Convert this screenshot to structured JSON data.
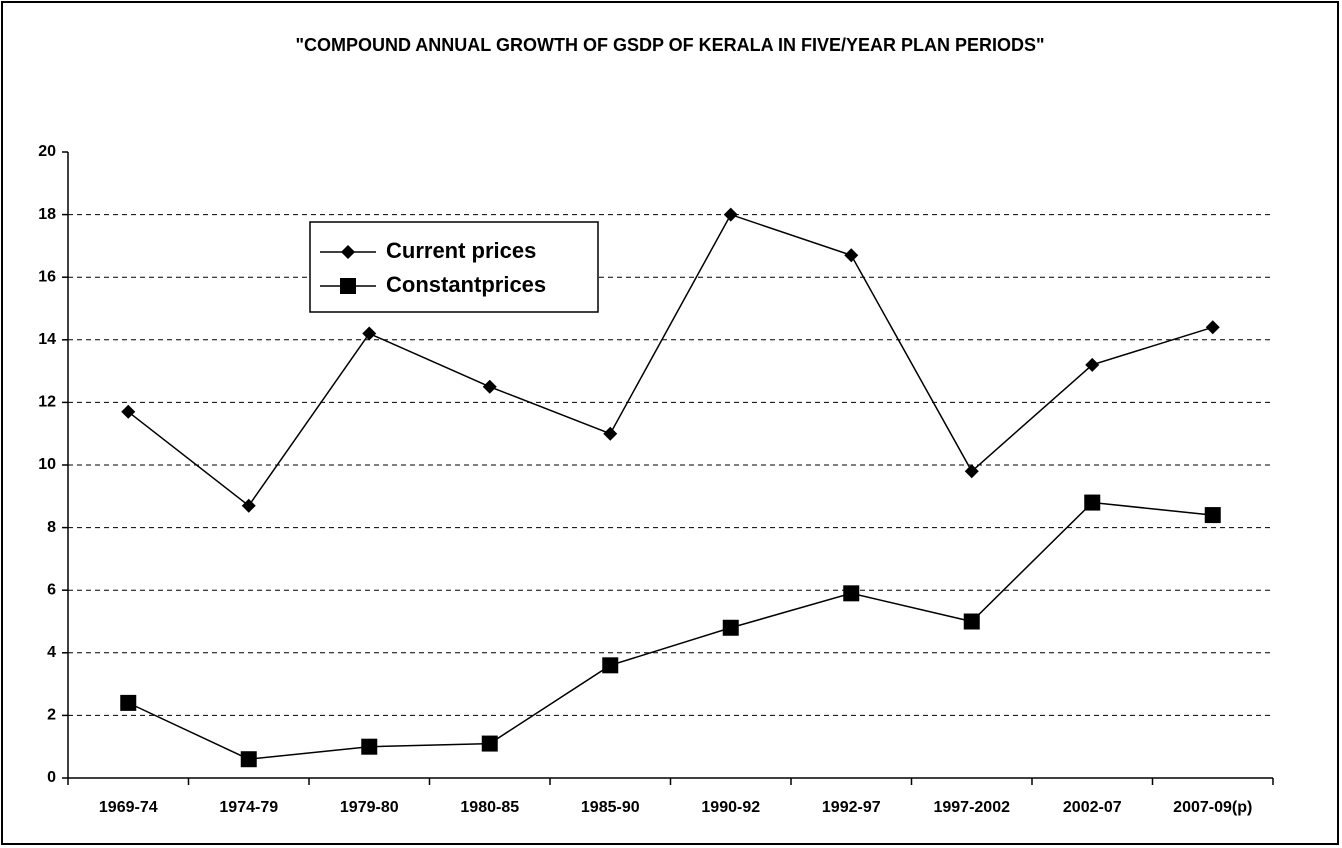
{
  "chart_data": {
    "type": "line",
    "title": "\"COMPOUND ANNUAL GROWTH OF GSDP OF KERALA IN FIVE/YEAR PLAN PERIODS\"",
    "categories": [
      "1969-74",
      "1974-79",
      "1979-80",
      "1980-85",
      "1985-90",
      "1990-92",
      "1992-97",
      "1997-2002",
      "2002-07",
      "2007-09(p)"
    ],
    "series": [
      {
        "name": "Current prices",
        "color": "#000000",
        "marker": "diamond",
        "values": [
          11.7,
          8.7,
          14.2,
          12.5,
          11.0,
          18.0,
          16.7,
          9.8,
          13.2,
          14.4
        ]
      },
      {
        "name": "Constantprices",
        "color": "#000000",
        "marker": "square",
        "values": [
          2.4,
          0.6,
          1.0,
          1.1,
          3.6,
          4.8,
          5.9,
          5.0,
          8.8,
          8.4
        ]
      }
    ],
    "ylim": [
      0,
      20
    ],
    "yticks": [
      0,
      2,
      4,
      6,
      8,
      10,
      12,
      14,
      16,
      18,
      20
    ],
    "grid": true,
    "legend": "upper left"
  }
}
